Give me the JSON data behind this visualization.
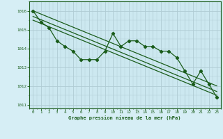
{
  "bg_color": "#d6eef5",
  "plot_bg_color": "#cce8f0",
  "grid_color": "#b0ccd4",
  "line_color": "#1a5c1a",
  "xlabel": "Graphe pression niveau de la mer (hPa)",
  "ylim": [
    1010.8,
    1016.5
  ],
  "xlim": [
    -0.5,
    23.5
  ],
  "yticks": [
    1011,
    1012,
    1013,
    1014,
    1015,
    1016
  ],
  "xticks": [
    0,
    1,
    2,
    3,
    4,
    5,
    6,
    7,
    8,
    9,
    10,
    11,
    12,
    13,
    14,
    15,
    16,
    17,
    18,
    19,
    20,
    21,
    22,
    23
  ],
  "line1_x": [
    0,
    1,
    2,
    3,
    4,
    5,
    6,
    7,
    8,
    9,
    10,
    11,
    12,
    13,
    14,
    15,
    16,
    17,
    18,
    19,
    20,
    21,
    22,
    23
  ],
  "line1_y": [
    1016.0,
    1015.4,
    1015.1,
    1014.4,
    1014.1,
    1013.85,
    1013.4,
    1013.4,
    1013.4,
    1013.85,
    1014.8,
    1014.1,
    1014.4,
    1014.4,
    1014.1,
    1014.1,
    1013.85,
    1013.85,
    1013.5,
    1012.8,
    1012.1,
    1012.8,
    1012.1,
    1011.4
  ],
  "trend1_x": [
    0,
    23
  ],
  "trend1_y": [
    1016.0,
    1012.0
  ],
  "trend2_x": [
    0,
    23
  ],
  "trend2_y": [
    1015.7,
    1011.7
  ],
  "trend3_x": [
    0,
    23
  ],
  "trend3_y": [
    1015.5,
    1011.5
  ]
}
